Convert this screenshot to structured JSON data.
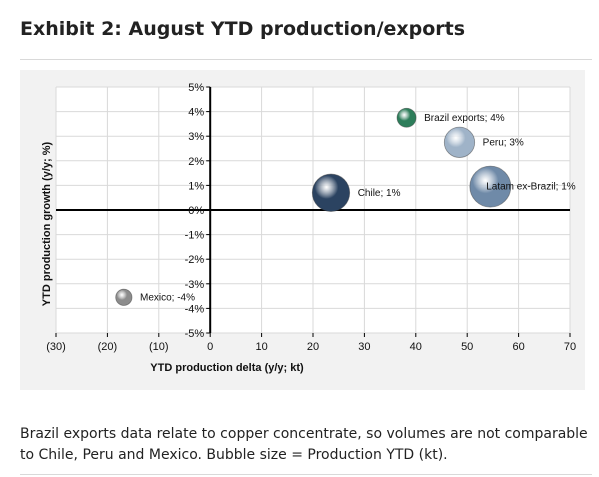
{
  "exhibit": {
    "title": "Exhibit 2: August YTD production/exports",
    "footnote": "Brazil exports data relate to copper concentrate, so volumes are not comparable to Chile, Peru and Mexico. Bubble size = Production YTD (kt)."
  },
  "colors": {
    "panel_background": "#f2f2f2",
    "plot_background": "#ffffff",
    "gridline": "#d9d9d9",
    "axis": "#000000",
    "bubble_navy": "#2b4361",
    "bubble_green": "#2d7d5a",
    "bubble_light_blue": "#9fb3c8",
    "bubble_steel_blue": "#6f8aa8",
    "bubble_grey": "#8c8c8c"
  },
  "chart_data": {
    "type": "scatter",
    "title": "",
    "xlabel": "YTD production delta (y/y; kt)",
    "ylabel": "YTD production growth (y/y; %)",
    "xlim": [
      -30,
      70
    ],
    "ylim": [
      -5,
      5
    ],
    "x_ticks": [
      -30,
      -20,
      -10,
      0,
      10,
      20,
      30,
      40,
      50,
      60,
      70
    ],
    "x_tick_labels": [
      "(30)",
      "(20)",
      "(10)",
      "0",
      "10",
      "20",
      "30",
      "40",
      "50",
      "60",
      "70"
    ],
    "y_ticks": [
      5,
      4,
      3,
      2,
      1,
      0,
      -1,
      -2,
      -3,
      -4,
      -5
    ],
    "y_tick_labels": [
      "5%",
      "4%",
      "3%",
      "2%",
      "1%",
      "0%",
      "-1%",
      "-2%",
      "-3%",
      "-4%",
      "-5%"
    ],
    "grid": true,
    "bubble_size_meaning": "Production YTD (kt)",
    "points": [
      {
        "label": "Chile; 1%",
        "x": 23.5,
        "y": 0.7,
        "relative_size": 1.0,
        "color": "#2b4361",
        "label_side": "right"
      },
      {
        "label": "Brazil exports; 4%",
        "x": 38.2,
        "y": 3.75,
        "relative_size": 0.26,
        "color": "#2d7d5a",
        "label_side": "right"
      },
      {
        "label": "Peru; 3%",
        "x": 48.5,
        "y": 2.75,
        "relative_size": 0.66,
        "color": "#9fb3c8",
        "label_side": "right"
      },
      {
        "label": "Latam ex-Brazil; 1%",
        "x": 54.5,
        "y": 0.95,
        "relative_size": 1.2,
        "color": "#6f8aa8",
        "label_side": "inside"
      },
      {
        "label": "Mexico; -4%",
        "x": -16.8,
        "y": -3.55,
        "relative_size": 0.19,
        "color": "#8c8c8c",
        "label_side": "right"
      }
    ]
  }
}
